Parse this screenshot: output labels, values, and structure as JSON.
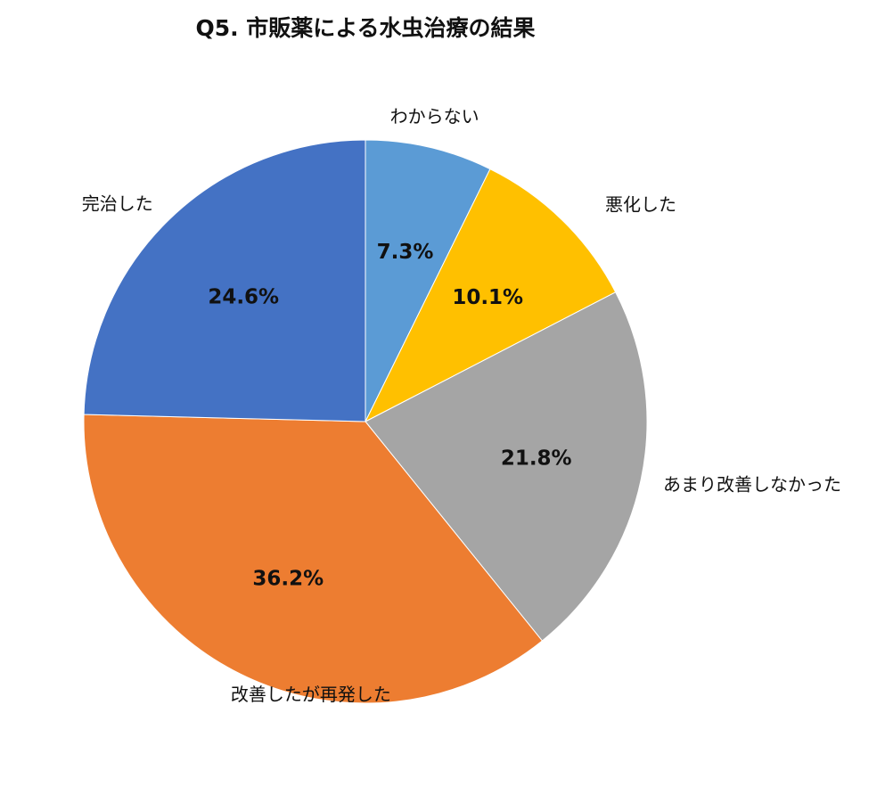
{
  "chart_data": {
    "type": "pie",
    "title": "Q5. 市販薬による水虫治療の結果",
    "start_angle_deg": 0,
    "direction": "clockwise",
    "slices": [
      {
        "label": "わからない",
        "value": 7.3,
        "value_label": "7.3%",
        "color": "#5B9BD5"
      },
      {
        "label": "悪化した",
        "value": 10.1,
        "value_label": "10.1%",
        "color": "#FFC000"
      },
      {
        "label": "あまり改善しなかった",
        "value": 21.8,
        "value_label": "21.8%",
        "color": "#A5A5A5"
      },
      {
        "label": "改善したが再発した",
        "value": 36.2,
        "value_label": "36.2%",
        "color": "#ED7D31"
      },
      {
        "label": "完治した",
        "value": 24.6,
        "value_label": "24.6%",
        "color": "#4472C4"
      }
    ]
  }
}
